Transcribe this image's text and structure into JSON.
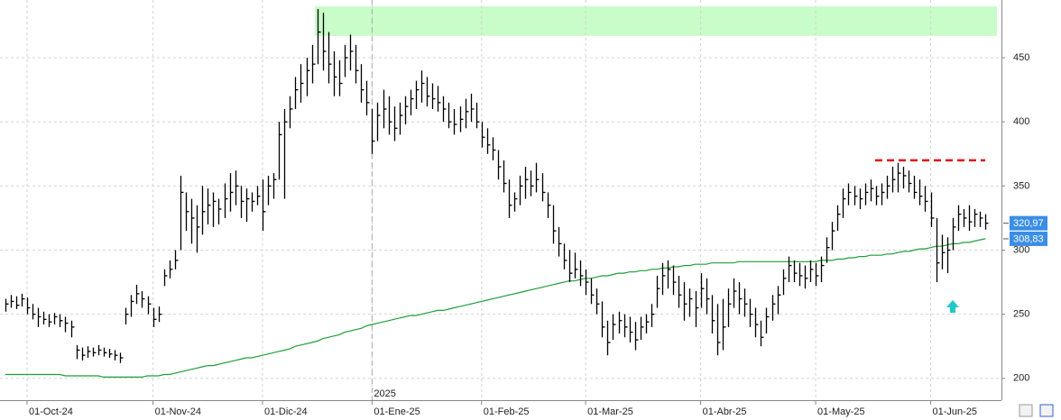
{
  "chart_data": {
    "type": "ohlc",
    "color": "#000000",
    "ylim": [
      183,
      495
    ],
    "yticks": [
      200,
      250,
      300,
      350,
      400,
      450
    ],
    "grid": true,
    "year_label": "2025",
    "categories": [
      null,
      null,
      null,
      null,
      "01-Oct-24",
      null,
      null,
      null,
      null,
      null,
      null,
      null,
      null,
      null,
      null,
      null,
      null,
      null,
      null,
      null,
      null,
      null,
      null,
      null,
      null,
      null,
      null,
      "01-Nov-24",
      null,
      null,
      null,
      null,
      null,
      null,
      null,
      null,
      null,
      null,
      null,
      null,
      null,
      null,
      null,
      null,
      null,
      null,
      null,
      "01-Dic-24",
      null,
      null,
      null,
      null,
      null,
      null,
      null,
      null,
      null,
      null,
      null,
      null,
      null,
      null,
      null,
      null,
      null,
      null,
      null,
      "01-Ene-25",
      null,
      null,
      null,
      null,
      null,
      null,
      null,
      null,
      null,
      null,
      null,
      null,
      null,
      null,
      null,
      null,
      null,
      null,
      null,
      "01-Feb-25",
      null,
      null,
      null,
      null,
      null,
      null,
      null,
      null,
      null,
      null,
      null,
      null,
      null,
      null,
      null,
      null,
      null,
      null,
      "01-Mar-25",
      null,
      null,
      null,
      null,
      null,
      null,
      null,
      null,
      null,
      null,
      null,
      null,
      null,
      null,
      null,
      null,
      null,
      null,
      null,
      null,
      "01-Abr-25",
      null,
      null,
      null,
      null,
      null,
      null,
      null,
      null,
      null,
      null,
      null,
      null,
      null,
      null,
      null,
      null,
      null,
      null,
      null,
      null,
      "01-May-25",
      null,
      null,
      null,
      null,
      null,
      null,
      null,
      null,
      null,
      null,
      null,
      null,
      null,
      null,
      null,
      null,
      null,
      null,
      null,
      null,
      "01-Jun-25",
      null,
      null,
      null,
      null,
      null,
      null,
      null,
      null,
      null,
      null
    ],
    "high": [
      262,
      265,
      264,
      266,
      263,
      258,
      255,
      252,
      250,
      251,
      250,
      248,
      245,
      226,
      224,
      225,
      224,
      226,
      224,
      223,
      222,
      220,
      255,
      265,
      273,
      268,
      264,
      255,
      256,
      285,
      292,
      300,
      358,
      345,
      340,
      335,
      350,
      348,
      345,
      340,
      352,
      360,
      362,
      350,
      348,
      345,
      350,
      355,
      358,
      360,
      400,
      410,
      420,
      435,
      445,
      450,
      460,
      488,
      485,
      470,
      455,
      448,
      460,
      468,
      460,
      445,
      432,
      410,
      415,
      425,
      420,
      412,
      415,
      420,
      425,
      432,
      440,
      435,
      430,
      428,
      420,
      415,
      410,
      412,
      418,
      422,
      415,
      400,
      395,
      388,
      378,
      370,
      355,
      345,
      358,
      365,
      362,
      368,
      360,
      345,
      335,
      318,
      305,
      300,
      298,
      292,
      285,
      278,
      270,
      260,
      245,
      250,
      252,
      250,
      248,
      244,
      248,
      250,
      258,
      280,
      290,
      292,
      288,
      280,
      275,
      270,
      268,
      282,
      278,
      265,
      258,
      262,
      270,
      278,
      275,
      270,
      262,
      255,
      245,
      255,
      265,
      272,
      285,
      295,
      292,
      290,
      288,
      292,
      290,
      295,
      310,
      322,
      335,
      348,
      352,
      350,
      348,
      352,
      355,
      350,
      352,
      358,
      365,
      368,
      365,
      362,
      358,
      355,
      350,
      345,
      325,
      312,
      310,
      325,
      335,
      332,
      335,
      332,
      330,
      328
    ],
    "low": [
      252,
      255,
      254,
      256,
      250,
      246,
      240,
      242,
      240,
      242,
      240,
      236,
      232,
      215,
      214,
      216,
      217,
      218,
      217,
      216,
      214,
      212,
      242,
      248,
      258,
      255,
      250,
      240,
      244,
      272,
      278,
      285,
      300,
      315,
      305,
      298,
      312,
      320,
      318,
      320,
      325,
      330,
      335,
      325,
      322,
      330,
      335,
      315,
      335,
      340,
      355,
      340,
      395,
      410,
      415,
      420,
      430,
      445,
      440,
      430,
      420,
      420,
      435,
      440,
      430,
      415,
      405,
      375,
      385,
      395,
      390,
      385,
      390,
      398,
      405,
      410,
      415,
      412,
      410,
      408,
      400,
      395,
      390,
      392,
      395,
      400,
      395,
      380,
      375,
      370,
      355,
      345,
      325,
      330,
      335,
      340,
      342,
      345,
      338,
      325,
      305,
      295,
      285,
      275,
      278,
      272,
      265,
      258,
      250,
      232,
      218,
      230,
      235,
      232,
      228,
      222,
      230,
      235,
      240,
      255,
      265,
      270,
      265,
      255,
      245,
      248,
      240,
      255,
      250,
      235,
      218,
      222,
      240,
      255,
      250,
      248,
      240,
      232,
      225,
      235,
      245,
      250,
      265,
      275,
      275,
      272,
      270,
      275,
      272,
      275,
      290,
      300,
      315,
      325,
      335,
      335,
      332,
      335,
      338,
      335,
      335,
      340,
      345,
      345,
      348,
      345,
      340,
      335,
      330,
      318,
      275,
      285,
      282,
      300,
      315,
      318,
      315,
      318,
      318,
      316
    ],
    "close": [
      258,
      260,
      257,
      262,
      255,
      250,
      248,
      246,
      244,
      248,
      245,
      243,
      240,
      222,
      218,
      221,
      220,
      222,
      220,
      219,
      218,
      216,
      250,
      260,
      266,
      262,
      258,
      246,
      250,
      280,
      285,
      292,
      345,
      330,
      325,
      318,
      330,
      335,
      338,
      332,
      340,
      345,
      350,
      338,
      340,
      338,
      342,
      330,
      350,
      355,
      390,
      400,
      410,
      425,
      430,
      440,
      445,
      470,
      455,
      445,
      435,
      430,
      450,
      455,
      440,
      425,
      415,
      385,
      405,
      410,
      400,
      395,
      405,
      412,
      418,
      425,
      430,
      420,
      418,
      415,
      410,
      400,
      398,
      402,
      408,
      410,
      400,
      388,
      382,
      378,
      365,
      352,
      335,
      340,
      350,
      355,
      350,
      355,
      345,
      335,
      315,
      305,
      292,
      282,
      285,
      280,
      275,
      265,
      258,
      240,
      228,
      242,
      245,
      240,
      236,
      230,
      240,
      244,
      250,
      270,
      280,
      285,
      275,
      265,
      258,
      262,
      255,
      270,
      262,
      245,
      228,
      240,
      258,
      268,
      262,
      258,
      250,
      242,
      232,
      248,
      258,
      265,
      278,
      288,
      282,
      280,
      278,
      285,
      280,
      288,
      302,
      315,
      328,
      340,
      345,
      342,
      340,
      345,
      348,
      342,
      345,
      350,
      355,
      360,
      358,
      352,
      345,
      342,
      338,
      325,
      290,
      298,
      300,
      318,
      328,
      325,
      322,
      328,
      325,
      320.97
    ],
    "close_label": "320,97",
    "close_label_color": "#3a8ee6",
    "moving_average": {
      "color": "#1f9e3a",
      "last_label": "308,83",
      "values": [
        203,
        203,
        203,
        203,
        203,
        203,
        203,
        203,
        203,
        203,
        203,
        202,
        202,
        202,
        202,
        202,
        202,
        202,
        201,
        201,
        201,
        201,
        201,
        201,
        201,
        201,
        202,
        202,
        202,
        203,
        203,
        204,
        205,
        206,
        207,
        208,
        209,
        210,
        210,
        211,
        212,
        213,
        214,
        215,
        216,
        216,
        217,
        218,
        219,
        220,
        221,
        222,
        223,
        225,
        226,
        227,
        228,
        229,
        231,
        232,
        233,
        234,
        236,
        237,
        238,
        239,
        241,
        242,
        243,
        244,
        245,
        246,
        247,
        248,
        249,
        249,
        250,
        251,
        252,
        253,
        253,
        254,
        255,
        256,
        257,
        258,
        259,
        260,
        261,
        262,
        263,
        264,
        265,
        266,
        267,
        268,
        269,
        270,
        271,
        272,
        273,
        274,
        275,
        276,
        276,
        277,
        278,
        278,
        279,
        280,
        280,
        281,
        282,
        282,
        283,
        283,
        284,
        284,
        285,
        285,
        286,
        286,
        287,
        287,
        288,
        288,
        289,
        289,
        289,
        290,
        290,
        290,
        290,
        290,
        291,
        291,
        291,
        291,
        291,
        291,
        291,
        291,
        291,
        291,
        291,
        291,
        291,
        291,
        291,
        292,
        292,
        292,
        293,
        293,
        294,
        294,
        295,
        295,
        296,
        296,
        296,
        297,
        297,
        298,
        299,
        299,
        300,
        301,
        301,
        302,
        303,
        303,
        304,
        305,
        305,
        306,
        306,
        307,
        308,
        308.83
      ]
    },
    "highlight_band": {
      "low": 467,
      "high": 490,
      "color": "#c8fcc8"
    },
    "resistance": {
      "value": 370,
      "color": "#e01010"
    }
  }
}
